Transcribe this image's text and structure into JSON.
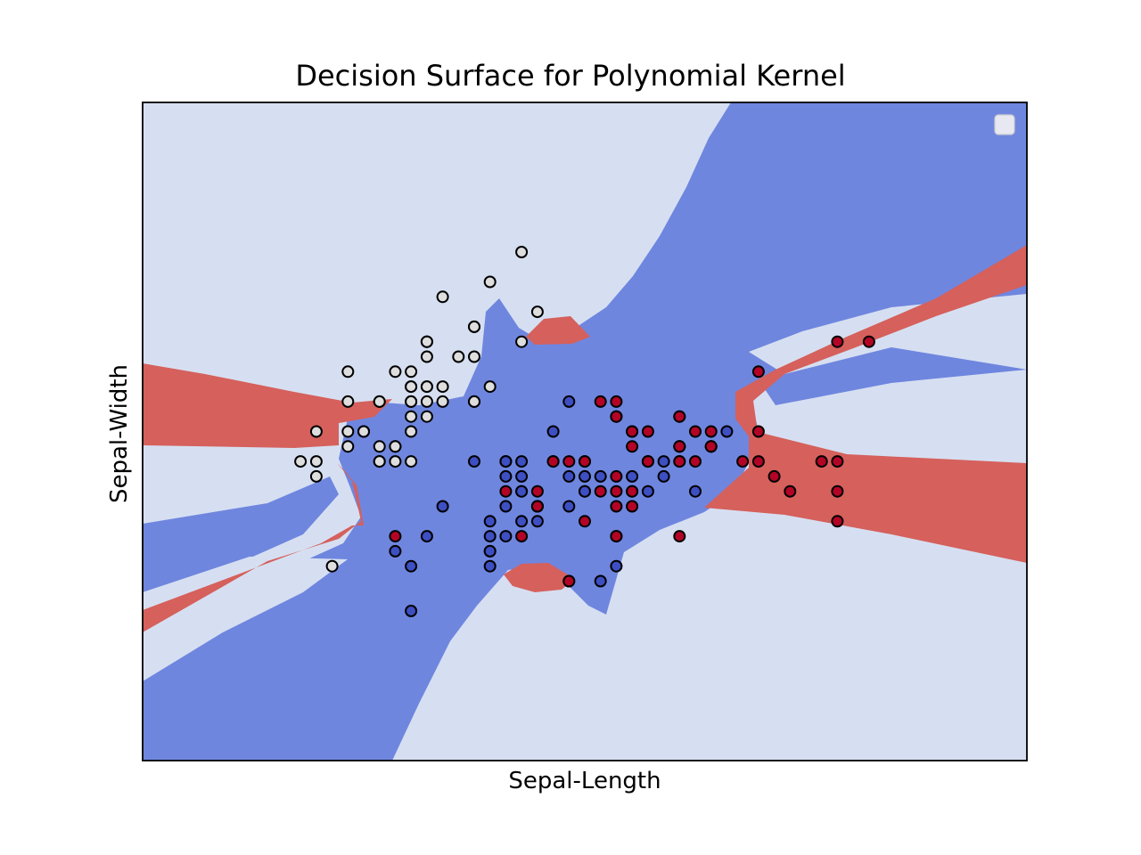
{
  "chart_data": {
    "type": "scatter",
    "title": "Decision Surface for Polynomial Kernel",
    "xlabel": "Sepal-Length",
    "ylabel": "Sepal-Width",
    "xlim": [
      3.3,
      8.9
    ],
    "ylim": [
      1.0,
      5.4
    ],
    "xticks": [],
    "yticks": [],
    "grid": false,
    "legend": {
      "placement": "top-right",
      "entries": []
    },
    "region_colors": {
      "light": "#d6dff1",
      "blue": "#6f86df",
      "red": "#d5605c"
    },
    "series": [
      {
        "color": "#dedede",
        "points": [
          [
            5.1,
            3.5
          ],
          [
            4.9,
            3.0
          ],
          [
            4.7,
            3.2
          ],
          [
            4.6,
            3.1
          ],
          [
            5.0,
            3.6
          ],
          [
            5.4,
            3.9
          ],
          [
            4.6,
            3.4
          ],
          [
            5.0,
            3.4
          ],
          [
            4.4,
            2.9
          ],
          [
            4.9,
            3.1
          ],
          [
            5.4,
            3.7
          ],
          [
            4.8,
            3.4
          ],
          [
            4.8,
            3.0
          ],
          [
            4.3,
            3.0
          ],
          [
            5.8,
            4.0
          ],
          [
            5.7,
            4.4
          ],
          [
            5.4,
            3.9
          ],
          [
            5.1,
            3.5
          ],
          [
            5.7,
            3.8
          ],
          [
            5.1,
            3.8
          ],
          [
            5.4,
            3.4
          ],
          [
            5.1,
            3.7
          ],
          [
            4.6,
            3.6
          ],
          [
            5.1,
            3.3
          ],
          [
            4.8,
            3.4
          ],
          [
            5.0,
            3.0
          ],
          [
            5.0,
            3.4
          ],
          [
            5.2,
            3.5
          ],
          [
            5.2,
            3.4
          ],
          [
            4.7,
            3.2
          ],
          [
            4.8,
            3.1
          ],
          [
            5.4,
            3.4
          ],
          [
            5.2,
            4.1
          ],
          [
            5.5,
            4.2
          ],
          [
            4.9,
            3.1
          ],
          [
            5.0,
            3.2
          ],
          [
            5.5,
            3.5
          ],
          [
            4.9,
            3.6
          ],
          [
            4.4,
            3.0
          ],
          [
            5.1,
            3.4
          ],
          [
            5.0,
            3.5
          ],
          [
            4.5,
            2.3
          ],
          [
            4.4,
            3.2
          ],
          [
            5.0,
            3.5
          ],
          [
            5.1,
            3.8
          ],
          [
            4.8,
            3.0
          ],
          [
            5.1,
            3.8
          ],
          [
            4.6,
            3.2
          ],
          [
            5.3,
            3.7
          ],
          [
            5.0,
            3.3
          ]
        ]
      },
      {
        "color": "#3d4fc2",
        "points": [
          [
            7.0,
            3.2
          ],
          [
            6.4,
            3.2
          ],
          [
            6.9,
            3.1
          ],
          [
            5.5,
            2.3
          ],
          [
            6.5,
            2.8
          ],
          [
            5.7,
            2.8
          ],
          [
            6.3,
            3.3
          ],
          [
            4.9,
            2.4
          ],
          [
            6.6,
            2.9
          ],
          [
            5.2,
            2.7
          ],
          [
            5.0,
            2.0
          ],
          [
            5.9,
            3.0
          ],
          [
            6.0,
            2.2
          ],
          [
            6.1,
            2.9
          ],
          [
            5.6,
            2.9
          ],
          [
            6.7,
            3.1
          ],
          [
            5.6,
            3.0
          ],
          [
            5.8,
            2.7
          ],
          [
            6.2,
            2.2
          ],
          [
            5.6,
            2.5
          ],
          [
            5.9,
            3.2
          ],
          [
            6.1,
            2.8
          ],
          [
            6.3,
            2.5
          ],
          [
            6.1,
            2.8
          ],
          [
            6.4,
            2.9
          ],
          [
            6.6,
            3.0
          ],
          [
            6.8,
            2.8
          ],
          [
            6.7,
            3.0
          ],
          [
            6.0,
            2.9
          ],
          [
            5.7,
            2.6
          ],
          [
            5.5,
            2.4
          ],
          [
            5.5,
            2.4
          ],
          [
            5.8,
            2.7
          ],
          [
            6.0,
            2.7
          ],
          [
            5.4,
            3.0
          ],
          [
            6.0,
            3.4
          ],
          [
            6.7,
            3.1
          ],
          [
            6.3,
            2.3
          ],
          [
            5.6,
            3.0
          ],
          [
            5.5,
            2.5
          ],
          [
            5.5,
            2.6
          ],
          [
            6.1,
            3.0
          ],
          [
            5.8,
            2.6
          ],
          [
            5.0,
            2.3
          ],
          [
            5.6,
            2.7
          ],
          [
            5.7,
            3.0
          ],
          [
            5.7,
            2.9
          ],
          [
            6.2,
            2.9
          ],
          [
            5.1,
            2.5
          ],
          [
            5.7,
            2.8
          ]
        ]
      },
      {
        "color": "#b40426",
        "points": [
          [
            6.3,
            3.3
          ],
          [
            5.8,
            2.7
          ],
          [
            7.1,
            3.0
          ],
          [
            6.3,
            2.9
          ],
          [
            6.5,
            3.0
          ],
          [
            7.6,
            3.0
          ],
          [
            4.9,
            2.5
          ],
          [
            7.3,
            2.9
          ],
          [
            6.7,
            2.5
          ],
          [
            7.2,
            3.6
          ],
          [
            6.5,
            3.2
          ],
          [
            6.4,
            2.7
          ],
          [
            6.8,
            3.0
          ],
          [
            5.7,
            2.5
          ],
          [
            5.8,
            2.8
          ],
          [
            6.4,
            3.2
          ],
          [
            6.5,
            3.0
          ],
          [
            7.7,
            3.8
          ],
          [
            7.7,
            2.6
          ],
          [
            6.0,
            2.2
          ],
          [
            6.9,
            3.2
          ],
          [
            5.6,
            2.8
          ],
          [
            7.7,
            2.8
          ],
          [
            6.3,
            2.7
          ],
          [
            6.7,
            3.3
          ],
          [
            7.2,
            3.2
          ],
          [
            6.2,
            2.8
          ],
          [
            6.1,
            3.0
          ],
          [
            6.4,
            2.8
          ],
          [
            7.2,
            3.0
          ],
          [
            7.4,
            2.8
          ],
          [
            7.9,
            3.8
          ],
          [
            6.4,
            2.8
          ],
          [
            6.3,
            2.8
          ],
          [
            6.1,
            2.6
          ],
          [
            7.7,
            3.0
          ],
          [
            6.3,
            3.4
          ],
          [
            6.4,
            3.1
          ],
          [
            6.0,
            3.0
          ],
          [
            6.9,
            3.1
          ],
          [
            6.7,
            3.1
          ],
          [
            6.9,
            3.1
          ],
          [
            5.8,
            2.7
          ],
          [
            6.8,
            3.2
          ],
          [
            6.7,
            3.3
          ],
          [
            6.7,
            3.0
          ],
          [
            6.3,
            2.5
          ],
          [
            6.5,
            3.0
          ],
          [
            6.2,
            3.4
          ],
          [
            5.9,
            3.0
          ]
        ]
      }
    ]
  }
}
